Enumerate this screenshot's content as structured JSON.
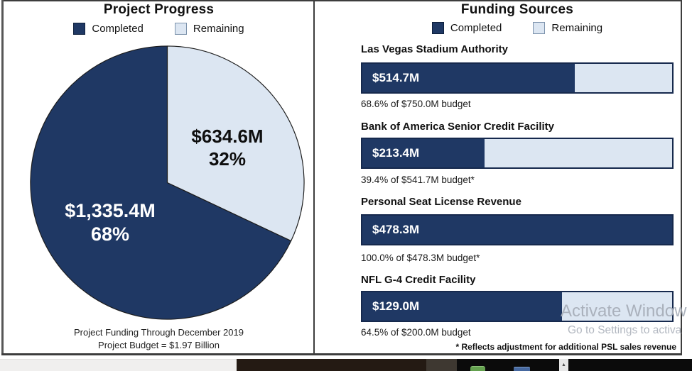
{
  "left_panel": {
    "title": "Project Progress",
    "legend": {
      "completed": "Completed",
      "remaining": "Remaining"
    },
    "pie": {
      "completed_amount": "$1,335.4M",
      "completed_pct": "68%",
      "remaining_amount": "$634.6M",
      "remaining_pct": "32%"
    },
    "footer_line1": "Project Funding Through December 2019",
    "footer_line2": "Project Budget = $1.97 Billion"
  },
  "right_panel": {
    "title": "Funding Sources",
    "legend": {
      "completed": "Completed",
      "remaining": "Remaining"
    },
    "rows": [
      {
        "label": "Las Vegas Stadium Authority",
        "amount": "$514.7M",
        "percent": 68.6,
        "caption": "68.6% of $750.0M budget"
      },
      {
        "label": "Bank of America Senior Credit Facility",
        "amount": "$213.4M",
        "percent": 39.4,
        "caption": "39.4% of $541.7M budget*"
      },
      {
        "label": "Personal Seat License Revenue",
        "amount": "$478.3M",
        "percent": 100,
        "caption": "100.0% of $478.3M budget*"
      },
      {
        "label": "NFL G-4 Credit Facility",
        "amount": "$129.0M",
        "percent": 64.5,
        "caption": "64.5% of $200.0M budget"
      }
    ],
    "footnote": "* Reflects adjustment for additional PSL sales revenue"
  },
  "watermark": {
    "line1": "Activate Window",
    "line2": "Go to Settings to activa"
  },
  "ui": {
    "scrollbar_up_glyph": "▲"
  },
  "colors": {
    "completed": "#1f3864",
    "remaining": "#dce6f2",
    "bar_border": "#16294d",
    "panel_border": "#3d3d3d",
    "watermark_gray": "#a8afba"
  },
  "chart_data": [
    {
      "type": "pie",
      "title": "Project Progress",
      "labels": [
        "Completed",
        "Remaining"
      ],
      "values_millions_usd": [
        1335.4,
        634.6
      ],
      "percents": [
        68,
        32
      ],
      "colors": [
        "#1f3864",
        "#dce6f2"
      ],
      "legend_position": "top",
      "annotations": [
        "$1,335.4M 68%",
        "$634.6M 32%"
      ],
      "notes": [
        "Project Funding Through December 2019",
        "Project Budget = $1.97 Billion"
      ]
    },
    {
      "type": "bar",
      "title": "Funding Sources",
      "orientation": "horizontal",
      "legend": [
        "Completed",
        "Remaining"
      ],
      "categories": [
        "Las Vegas Stadium Authority",
        "Bank of America Senior Credit Facility",
        "Personal Seat License Revenue",
        "NFL G-4 Credit Facility"
      ],
      "series": [
        {
          "name": "Completed ($M)",
          "values": [
            514.7,
            213.4,
            478.3,
            129.0
          ]
        },
        {
          "name": "Budget ($M)",
          "values": [
            750.0,
            541.7,
            478.3,
            200.0
          ]
        }
      ],
      "percent_complete": [
        68.6,
        39.4,
        100.0,
        64.5
      ],
      "footnote": "* Reflects adjustment for additional PSL sales revenue"
    }
  ]
}
